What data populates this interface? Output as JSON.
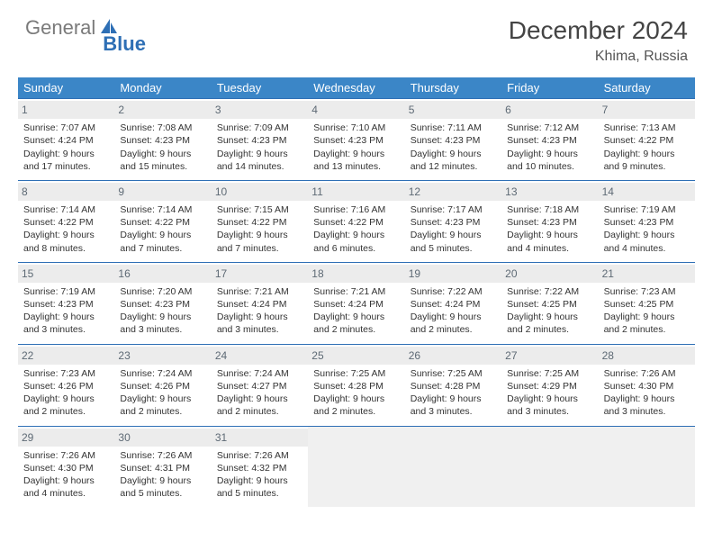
{
  "brand": {
    "part1": "General",
    "part2": "Blue"
  },
  "title": "December 2024",
  "location": "Khima, Russia",
  "days": [
    "Sunday",
    "Monday",
    "Tuesday",
    "Wednesday",
    "Thursday",
    "Friday",
    "Saturday"
  ],
  "colors": {
    "header_bg": "#3b86c7",
    "rule": "#2e6fb5",
    "daynum_bg": "#ececec"
  },
  "weeks": [
    [
      {
        "n": "1",
        "sr": "Sunrise: 7:07 AM",
        "ss": "Sunset: 4:24 PM",
        "dl": "Daylight: 9 hours and 17 minutes."
      },
      {
        "n": "2",
        "sr": "Sunrise: 7:08 AM",
        "ss": "Sunset: 4:23 PM",
        "dl": "Daylight: 9 hours and 15 minutes."
      },
      {
        "n": "3",
        "sr": "Sunrise: 7:09 AM",
        "ss": "Sunset: 4:23 PM",
        "dl": "Daylight: 9 hours and 14 minutes."
      },
      {
        "n": "4",
        "sr": "Sunrise: 7:10 AM",
        "ss": "Sunset: 4:23 PM",
        "dl": "Daylight: 9 hours and 13 minutes."
      },
      {
        "n": "5",
        "sr": "Sunrise: 7:11 AM",
        "ss": "Sunset: 4:23 PM",
        "dl": "Daylight: 9 hours and 12 minutes."
      },
      {
        "n": "6",
        "sr": "Sunrise: 7:12 AM",
        "ss": "Sunset: 4:23 PM",
        "dl": "Daylight: 9 hours and 10 minutes."
      },
      {
        "n": "7",
        "sr": "Sunrise: 7:13 AM",
        "ss": "Sunset: 4:22 PM",
        "dl": "Daylight: 9 hours and 9 minutes."
      }
    ],
    [
      {
        "n": "8",
        "sr": "Sunrise: 7:14 AM",
        "ss": "Sunset: 4:22 PM",
        "dl": "Daylight: 9 hours and 8 minutes."
      },
      {
        "n": "9",
        "sr": "Sunrise: 7:14 AM",
        "ss": "Sunset: 4:22 PM",
        "dl": "Daylight: 9 hours and 7 minutes."
      },
      {
        "n": "10",
        "sr": "Sunrise: 7:15 AM",
        "ss": "Sunset: 4:22 PM",
        "dl": "Daylight: 9 hours and 7 minutes."
      },
      {
        "n": "11",
        "sr": "Sunrise: 7:16 AM",
        "ss": "Sunset: 4:22 PM",
        "dl": "Daylight: 9 hours and 6 minutes."
      },
      {
        "n": "12",
        "sr": "Sunrise: 7:17 AM",
        "ss": "Sunset: 4:23 PM",
        "dl": "Daylight: 9 hours and 5 minutes."
      },
      {
        "n": "13",
        "sr": "Sunrise: 7:18 AM",
        "ss": "Sunset: 4:23 PM",
        "dl": "Daylight: 9 hours and 4 minutes."
      },
      {
        "n": "14",
        "sr": "Sunrise: 7:19 AM",
        "ss": "Sunset: 4:23 PM",
        "dl": "Daylight: 9 hours and 4 minutes."
      }
    ],
    [
      {
        "n": "15",
        "sr": "Sunrise: 7:19 AM",
        "ss": "Sunset: 4:23 PM",
        "dl": "Daylight: 9 hours and 3 minutes."
      },
      {
        "n": "16",
        "sr": "Sunrise: 7:20 AM",
        "ss": "Sunset: 4:23 PM",
        "dl": "Daylight: 9 hours and 3 minutes."
      },
      {
        "n": "17",
        "sr": "Sunrise: 7:21 AM",
        "ss": "Sunset: 4:24 PM",
        "dl": "Daylight: 9 hours and 3 minutes."
      },
      {
        "n": "18",
        "sr": "Sunrise: 7:21 AM",
        "ss": "Sunset: 4:24 PM",
        "dl": "Daylight: 9 hours and 2 minutes."
      },
      {
        "n": "19",
        "sr": "Sunrise: 7:22 AM",
        "ss": "Sunset: 4:24 PM",
        "dl": "Daylight: 9 hours and 2 minutes."
      },
      {
        "n": "20",
        "sr": "Sunrise: 7:22 AM",
        "ss": "Sunset: 4:25 PM",
        "dl": "Daylight: 9 hours and 2 minutes."
      },
      {
        "n": "21",
        "sr": "Sunrise: 7:23 AM",
        "ss": "Sunset: 4:25 PM",
        "dl": "Daylight: 9 hours and 2 minutes."
      }
    ],
    [
      {
        "n": "22",
        "sr": "Sunrise: 7:23 AM",
        "ss": "Sunset: 4:26 PM",
        "dl": "Daylight: 9 hours and 2 minutes."
      },
      {
        "n": "23",
        "sr": "Sunrise: 7:24 AM",
        "ss": "Sunset: 4:26 PM",
        "dl": "Daylight: 9 hours and 2 minutes."
      },
      {
        "n": "24",
        "sr": "Sunrise: 7:24 AM",
        "ss": "Sunset: 4:27 PM",
        "dl": "Daylight: 9 hours and 2 minutes."
      },
      {
        "n": "25",
        "sr": "Sunrise: 7:25 AM",
        "ss": "Sunset: 4:28 PM",
        "dl": "Daylight: 9 hours and 2 minutes."
      },
      {
        "n": "26",
        "sr": "Sunrise: 7:25 AM",
        "ss": "Sunset: 4:28 PM",
        "dl": "Daylight: 9 hours and 3 minutes."
      },
      {
        "n": "27",
        "sr": "Sunrise: 7:25 AM",
        "ss": "Sunset: 4:29 PM",
        "dl": "Daylight: 9 hours and 3 minutes."
      },
      {
        "n": "28",
        "sr": "Sunrise: 7:26 AM",
        "ss": "Sunset: 4:30 PM",
        "dl": "Daylight: 9 hours and 3 minutes."
      }
    ],
    [
      {
        "n": "29",
        "sr": "Sunrise: 7:26 AM",
        "ss": "Sunset: 4:30 PM",
        "dl": "Daylight: 9 hours and 4 minutes."
      },
      {
        "n": "30",
        "sr": "Sunrise: 7:26 AM",
        "ss": "Sunset: 4:31 PM",
        "dl": "Daylight: 9 hours and 5 minutes."
      },
      {
        "n": "31",
        "sr": "Sunrise: 7:26 AM",
        "ss": "Sunset: 4:32 PM",
        "dl": "Daylight: 9 hours and 5 minutes."
      },
      null,
      null,
      null,
      null
    ]
  ]
}
